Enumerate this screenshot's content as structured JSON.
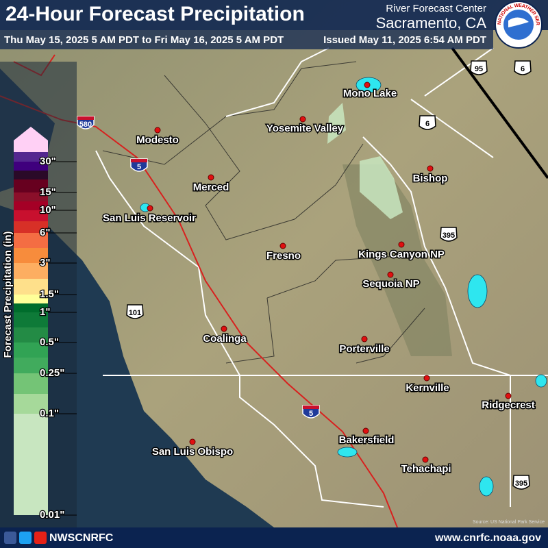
{
  "header": {
    "title": "24-Hour Forecast Precipitation",
    "office": "River Forecast Center",
    "location": "Sacramento, CA",
    "period": "Thu May 15, 2025 5 AM PDT to Fri May 16, 2025 5 AM PDT",
    "issued": "Issued May 11, 2025 6:54 AM PDT",
    "logo": "NATIONAL WEATHER SERVICE"
  },
  "legend": {
    "title": "Forecast Precipitation (in)",
    "labels": [
      "30\"",
      "15\"",
      "10\"",
      "6\"",
      "3\"",
      "1.5\"",
      "1\"",
      "0.5\"",
      "0.25\"",
      "0.1\"",
      "0.01\""
    ]
  },
  "cities": [
    "Mono Lake",
    "Yosemite Valley",
    "Modesto",
    "Merced",
    "Bishop",
    "San Luis Reservoir",
    "Kings Canyon NP",
    "Fresno",
    "Sequoia NP",
    "Coalinga",
    "Porterville",
    "Kernville",
    "Ridgecrest",
    "Bakersfield",
    "San Luis Obispo",
    "Tehachapi"
  ],
  "shields": [
    "580",
    "5",
    "5",
    "101",
    "95",
    "6",
    "6",
    "395",
    "395"
  ],
  "footer": {
    "handle": "NWSCNRFC",
    "url": "www.cnrfc.noaa.gov",
    "source": "Source: US National Park Service"
  }
}
